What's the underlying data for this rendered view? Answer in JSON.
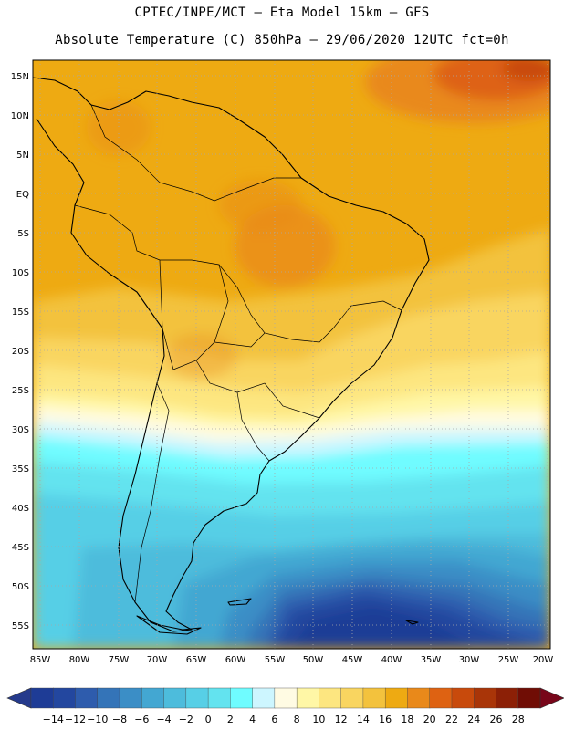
{
  "header": {
    "line1": "CPTEC/INPE/MCT –   Eta Model 15km – GFS",
    "line2": "Absolute Temperature (C) 850hPa – 29/06/2020 12UTC fct=0h"
  },
  "map": {
    "region": "South America",
    "lat_labels": [
      "15N",
      "10N",
      "5N",
      "EQ",
      "5S",
      "10S",
      "15S",
      "20S",
      "25S",
      "30S",
      "35S",
      "40S",
      "45S",
      "50S",
      "55S"
    ],
    "lon_labels": [
      "85W",
      "80W",
      "75W",
      "70W",
      "65W",
      "60W",
      "55W",
      "50W",
      "45W",
      "40W",
      "35W",
      "30W",
      "25W",
      "20W"
    ]
  },
  "colorbar": {
    "labels": [
      "-14",
      "-12",
      "-10",
      "-8",
      "-6",
      "-4",
      "-2",
      "0",
      "2",
      "4",
      "6",
      "8",
      "10",
      "12",
      "14",
      "16",
      "18",
      "20",
      "22",
      "24",
      "26",
      "28"
    ],
    "colors": [
      "#1e3c96",
      "#23479f",
      "#2e5cad",
      "#3474b8",
      "#3b8ec6",
      "#43a7d2",
      "#4dbcdc",
      "#57cfe6",
      "#63e3ef",
      "#6ffcff",
      "#cdf6ff",
      "#fffbe3",
      "#fff7a6",
      "#fde680",
      "#f9d560",
      "#f3c23d",
      "#eeaa12",
      "#e9891a",
      "#de6212",
      "#c84a0c",
      "#a93508",
      "#8c2006",
      "#700d05"
    ]
  },
  "style": {
    "tropics_color": "#eeaa12",
    "warm_core_color": "#e9891a",
    "cold_core_color": "#1e3c96"
  }
}
